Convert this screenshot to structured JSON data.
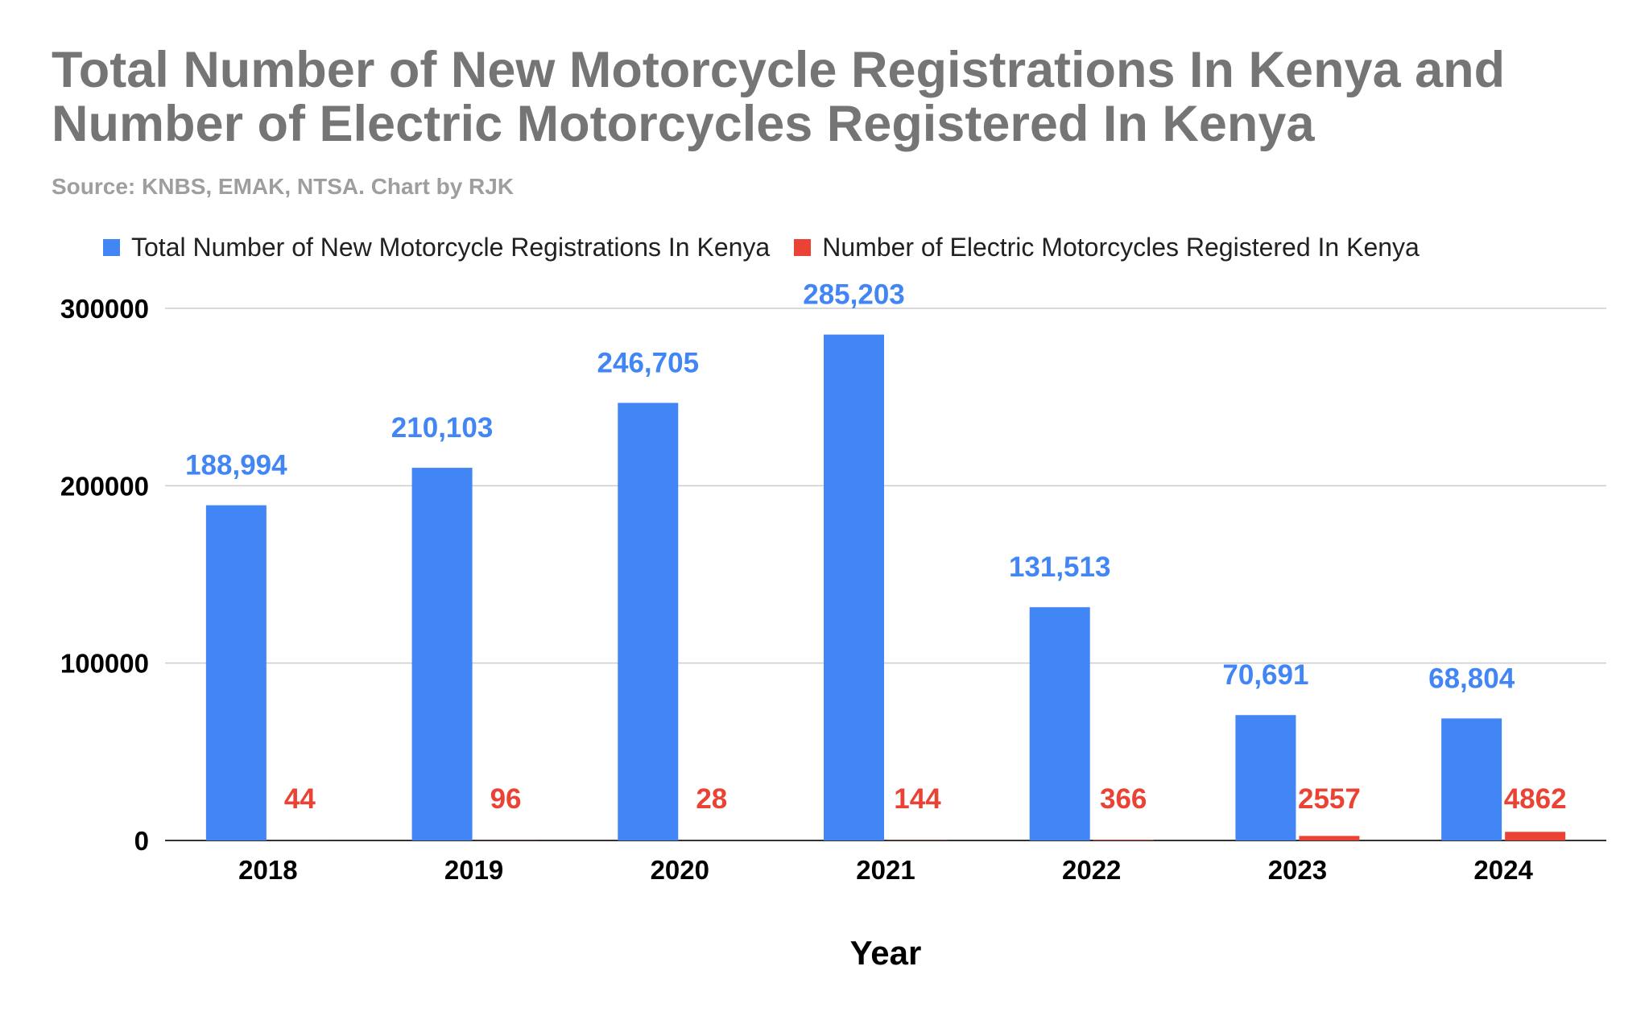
{
  "chart_data": {
    "type": "bar",
    "title": "Total Number of New Motorcycle Registrations In Kenya and Number of Electric Motorcycles Registered In Kenya",
    "subtitle": "Source: KNBS, EMAK, NTSA. Chart by RJK",
    "xlabel": "Year",
    "ylabel": "",
    "categories": [
      "2018",
      "2019",
      "2020",
      "2021",
      "2022",
      "2023",
      "2024"
    ],
    "series": [
      {
        "name": "Total Number of New Motorcycle Registrations In Kenya",
        "color": "#4285f4",
        "values": [
          188994,
          210103,
          246705,
          285203,
          131513,
          70691,
          68804
        ],
        "labels": [
          "188,994",
          "210,103",
          "246,705",
          "285,203",
          "131,513",
          "70,691",
          "68,804"
        ]
      },
      {
        "name": "Number of Electric Motorcycles Registered In Kenya",
        "color": "#ea4335",
        "values": [
          44,
          96,
          28,
          144,
          366,
          2557,
          4862
        ],
        "labels": [
          "44",
          "96",
          "28",
          "144",
          "366",
          "2557",
          "4862"
        ]
      }
    ],
    "ylim": [
      0,
      300000
    ],
    "yticks": [
      0,
      100000,
      200000,
      300000
    ],
    "ytick_labels": [
      "0",
      "100000",
      "200000",
      "300000"
    ],
    "grid": true,
    "legend": "top"
  }
}
